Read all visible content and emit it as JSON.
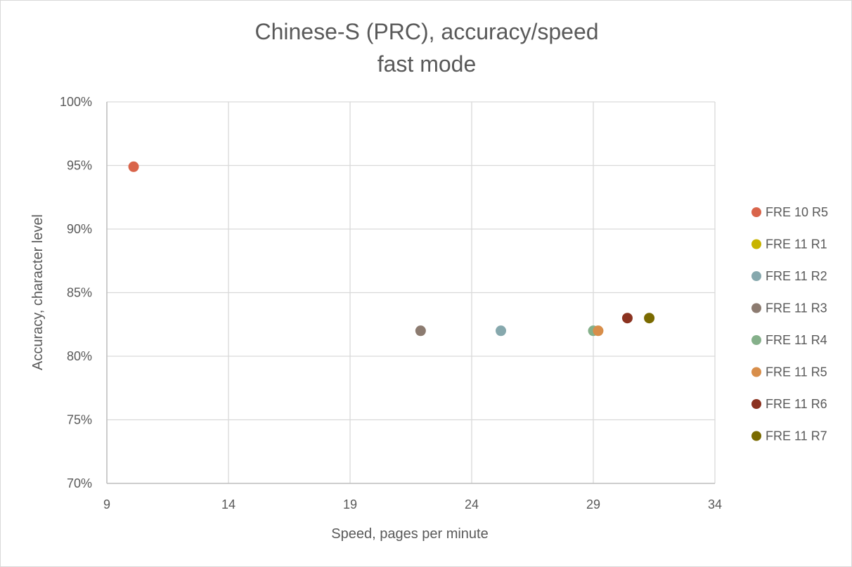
{
  "chart_data": {
    "type": "scatter",
    "title_lines": [
      "Chinese-S (PRC), accuracy/speed",
      "fast mode"
    ],
    "xlabel": "Speed, pages per minute",
    "ylabel": "Accuracy, character level",
    "xlim": [
      9,
      34
    ],
    "ylim": [
      0.7,
      1.0
    ],
    "x_ticks": [
      9,
      14,
      19,
      24,
      29,
      34
    ],
    "y_ticks": [
      0.7,
      0.75,
      0.8,
      0.85,
      0.9,
      0.95,
      1.0
    ],
    "x_tick_labels": [
      "9",
      "14",
      "19",
      "24",
      "29",
      "34"
    ],
    "y_tick_labels": [
      "70%",
      "75%",
      "80%",
      "85%",
      "90%",
      "95%",
      "100%"
    ],
    "grid": true,
    "legend_position": "right",
    "series": [
      {
        "name": "FRE 10 R5",
        "color": "#D9644A",
        "x": 10.1,
        "y": 0.949
      },
      {
        "name": "FRE 11 R1",
        "color": "#C8B400",
        "x": null,
        "y": null
      },
      {
        "name": "FRE 11 R2",
        "color": "#86A8AD",
        "x": 25.2,
        "y": 0.82
      },
      {
        "name": "FRE 11 R3",
        "color": "#8C7B70",
        "x": 21.9,
        "y": 0.82
      },
      {
        "name": "FRE 11 R4",
        "color": "#85B08A",
        "x": 29.0,
        "y": 0.82
      },
      {
        "name": "FRE 11 R5",
        "color": "#D88E4A",
        "x": 29.2,
        "y": 0.82
      },
      {
        "name": "FRE 11 R6",
        "color": "#8B3220",
        "x": 30.4,
        "y": 0.83
      },
      {
        "name": "FRE 11 R7",
        "color": "#7A6A00",
        "x": 31.3,
        "y": 0.83
      }
    ]
  }
}
